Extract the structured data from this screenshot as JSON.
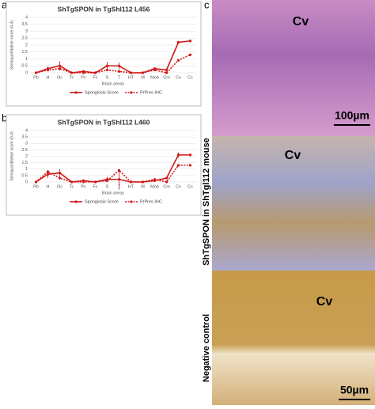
{
  "panel_labels": [
    "a",
    "b",
    "c"
  ],
  "chart_data": [
    {
      "type": "line",
      "title": "ShTgSPON in TgShl112 L456",
      "ylabel": "Semiquantitative score (0-4)",
      "xlabel": "Brain areas",
      "categories": [
        "Pb",
        "H",
        "Oc",
        "Tc",
        "Pc",
        "Fc",
        "S",
        "T",
        "HT",
        "M",
        "Mob",
        "Cm",
        "Cv",
        "Cc"
      ],
      "ylim": [
        0,
        4
      ],
      "yticks": [
        0,
        0.5,
        1,
        1.5,
        2,
        2.5,
        3,
        3.5,
        4
      ],
      "legend": "bottom",
      "series": [
        {
          "name": "Spongiosis Score",
          "color": "#d01818",
          "dash": false,
          "values": [
            0,
            0.3,
            0.5,
            0,
            0.1,
            0,
            0.5,
            0.5,
            0,
            0,
            0.3,
            0.2,
            2.2,
            2.3
          ],
          "errors": [
            0,
            0.15,
            0.35,
            0,
            0.1,
            0,
            0.3,
            0.25,
            0,
            0,
            0.1,
            0.1,
            0.1,
            0.1
          ]
        },
        {
          "name": "PrPres IHC",
          "color": "#d01818",
          "dash": true,
          "values": [
            0,
            0.2,
            0.3,
            0,
            0,
            0,
            0.2,
            0.1,
            0,
            0,
            0.2,
            0,
            0.9,
            1.3
          ]
        }
      ]
    },
    {
      "type": "line",
      "title": "ShTgSPON in TgShl112 L460",
      "ylabel": "Semiquantitative score (0-4)",
      "xlabel": "Brain areas",
      "categories": [
        "Pb",
        "H",
        "Oc",
        "Tc",
        "Pc",
        "Fc",
        "S",
        "T",
        "HT",
        "M",
        "Mob",
        "Cm",
        "Cv",
        "Cc"
      ],
      "ylim": [
        0,
        4
      ],
      "yticks": [
        0,
        0.5,
        1,
        1.5,
        2,
        2.5,
        3,
        3.5,
        4
      ],
      "legend": "bottom",
      "series": [
        {
          "name": "Spongiosis Score",
          "color": "#d01818",
          "dash": false,
          "values": [
            0,
            0.6,
            0.7,
            0,
            0.1,
            0,
            0.2,
            0.2,
            0,
            0,
            0.1,
            0.3,
            2.1,
            2.1
          ],
          "errors": [
            0,
            0.3,
            0.3,
            0,
            0.1,
            0,
            0.2,
            0.8,
            0,
            0,
            0.1,
            0.1,
            0.2,
            0.1
          ]
        },
        {
          "name": "PrPres IHC",
          "color": "#d01818",
          "dash": true,
          "values": [
            0,
            0.8,
            0.3,
            0,
            0,
            0,
            0.1,
            0.9,
            0,
            0,
            0.2,
            0,
            1.3,
            1.3
          ]
        }
      ]
    }
  ],
  "images": {
    "region_labels": [
      "Cv",
      "Cv",
      "Cv"
    ],
    "scale_bars": [
      "100µm",
      "50µm"
    ],
    "side_labels": [
      "ShTgSPON in ShTgl112 mouse",
      "Negative control"
    ]
  }
}
